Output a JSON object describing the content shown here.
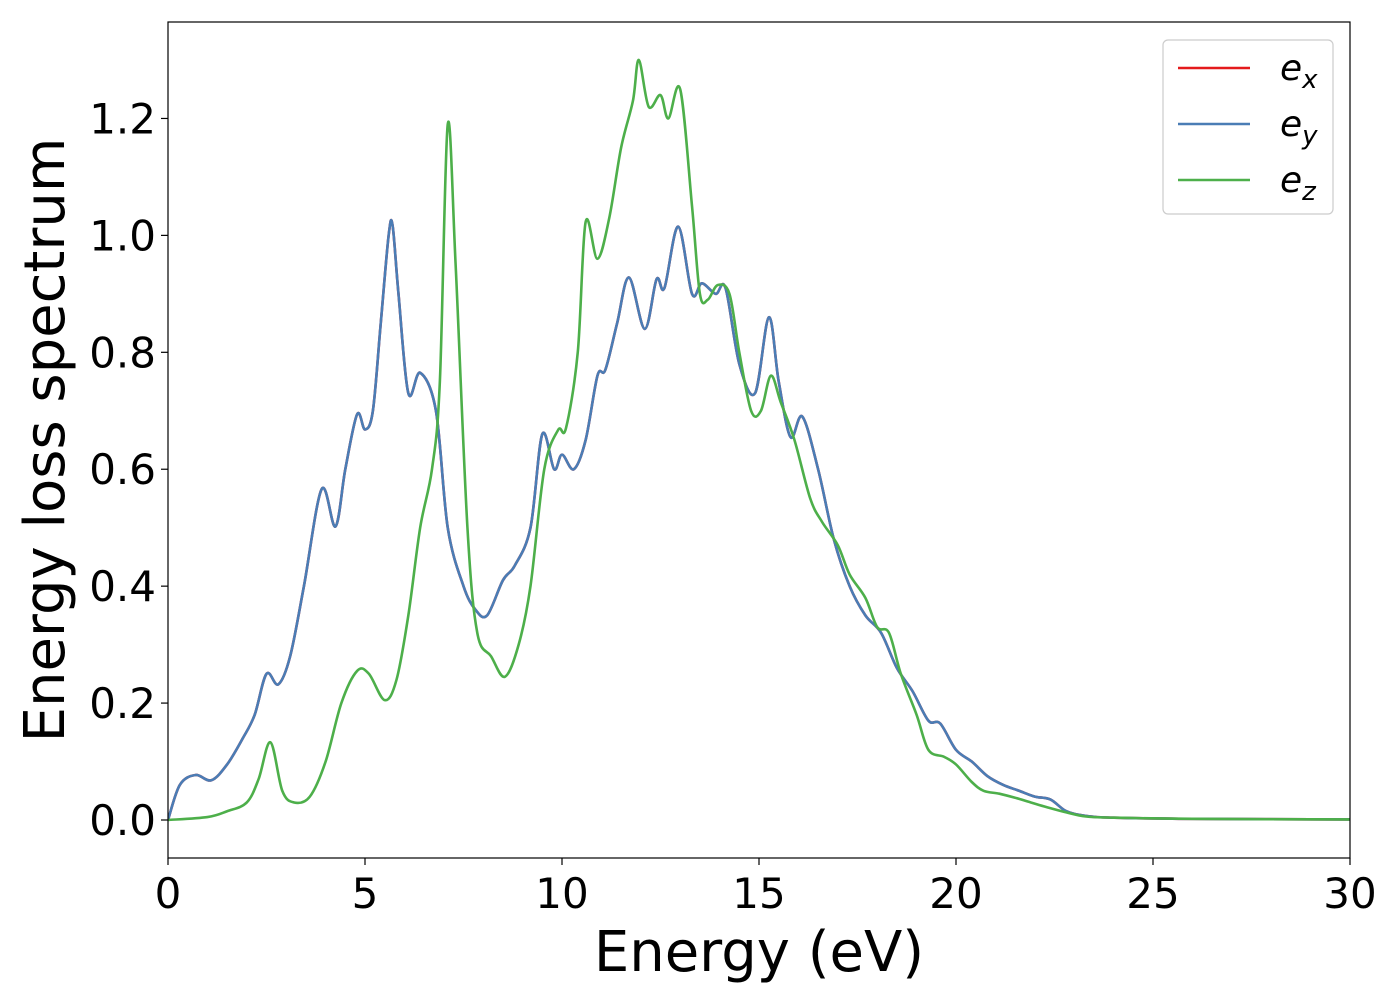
{
  "chart_data": {
    "type": "line",
    "title": "",
    "xlabel": "Energy (eV)",
    "ylabel": "Energy loss spectrum",
    "xlim": [
      0,
      30
    ],
    "ylim": [
      -0.065,
      1.365
    ],
    "xticks": [
      0,
      5,
      10,
      15,
      20,
      25,
      30
    ],
    "xtick_labels": [
      "0",
      "5",
      "10",
      "15",
      "20",
      "25",
      "30"
    ],
    "yticks": [
      0.0,
      0.2,
      0.4,
      0.6,
      0.8,
      1.0,
      1.2
    ],
    "ytick_labels": [
      "0.0",
      "0.2",
      "0.4",
      "0.6",
      "0.8",
      "1.0",
      "1.2"
    ],
    "grid": false,
    "legend_position": "top-right",
    "series": [
      {
        "name": "e_x",
        "legend_base": "e",
        "legend_sub": "x",
        "color": "#e41a1c",
        "points": [
          [
            0,
            0
          ],
          [
            0.3,
            0.06
          ],
          [
            0.7,
            0.077
          ],
          [
            1.1,
            0.068
          ],
          [
            1.5,
            0.095
          ],
          [
            1.9,
            0.14
          ],
          [
            2.2,
            0.18
          ],
          [
            2.5,
            0.25
          ],
          [
            2.8,
            0.232
          ],
          [
            3.1,
            0.28
          ],
          [
            3.45,
            0.4
          ],
          [
            3.9,
            0.566
          ],
          [
            4.25,
            0.502
          ],
          [
            4.5,
            0.6
          ],
          [
            4.8,
            0.694
          ],
          [
            5.0,
            0.668
          ],
          [
            5.2,
            0.7
          ],
          [
            5.4,
            0.85
          ],
          [
            5.6,
            1.0
          ],
          [
            5.7,
            1.017
          ],
          [
            5.85,
            0.9
          ],
          [
            6.1,
            0.73
          ],
          [
            6.4,
            0.765
          ],
          [
            6.8,
            0.7
          ],
          [
            7.1,
            0.5
          ],
          [
            7.5,
            0.4
          ],
          [
            7.8,
            0.36
          ],
          [
            8.1,
            0.35
          ],
          [
            8.5,
            0.41
          ],
          [
            8.8,
            0.435
          ],
          [
            9.2,
            0.5
          ],
          [
            9.5,
            0.66
          ],
          [
            9.8,
            0.6
          ],
          [
            10.0,
            0.625
          ],
          [
            10.3,
            0.6
          ],
          [
            10.6,
            0.65
          ],
          [
            10.9,
            0.76
          ],
          [
            11.1,
            0.77
          ],
          [
            11.4,
            0.85
          ],
          [
            11.7,
            0.928
          ],
          [
            12.1,
            0.84
          ],
          [
            12.4,
            0.925
          ],
          [
            12.6,
            0.91
          ],
          [
            12.95,
            1.015
          ],
          [
            13.3,
            0.9
          ],
          [
            13.55,
            0.918
          ],
          [
            13.9,
            0.9
          ],
          [
            14.15,
            0.91
          ],
          [
            14.5,
            0.78
          ],
          [
            14.9,
            0.73
          ],
          [
            15.25,
            0.86
          ],
          [
            15.5,
            0.75
          ],
          [
            15.8,
            0.655
          ],
          [
            16.1,
            0.69
          ],
          [
            16.5,
            0.6
          ],
          [
            16.9,
            0.48
          ],
          [
            17.3,
            0.4
          ],
          [
            17.7,
            0.35
          ],
          [
            18.1,
            0.32
          ],
          [
            18.5,
            0.26
          ],
          [
            18.9,
            0.22
          ],
          [
            19.3,
            0.17
          ],
          [
            19.6,
            0.165
          ],
          [
            20.0,
            0.12
          ],
          [
            20.4,
            0.1
          ],
          [
            20.8,
            0.075
          ],
          [
            21.2,
            0.06
          ],
          [
            21.6,
            0.05
          ],
          [
            22.0,
            0.04
          ],
          [
            22.4,
            0.035
          ],
          [
            22.8,
            0.015
          ],
          [
            23.3,
            0.007
          ],
          [
            24.0,
            0.004
          ],
          [
            26.0,
            0.002
          ],
          [
            30.0,
            0.001
          ]
        ]
      },
      {
        "name": "e_y",
        "legend_base": "e",
        "legend_sub": "y",
        "color": "#4a7db5",
        "points": [
          [
            0,
            0
          ],
          [
            0.3,
            0.06
          ],
          [
            0.7,
            0.077
          ],
          [
            1.1,
            0.068
          ],
          [
            1.5,
            0.095
          ],
          [
            1.9,
            0.14
          ],
          [
            2.2,
            0.18
          ],
          [
            2.5,
            0.25
          ],
          [
            2.8,
            0.232
          ],
          [
            3.1,
            0.28
          ],
          [
            3.45,
            0.4
          ],
          [
            3.9,
            0.566
          ],
          [
            4.25,
            0.502
          ],
          [
            4.5,
            0.6
          ],
          [
            4.8,
            0.694
          ],
          [
            5.0,
            0.668
          ],
          [
            5.2,
            0.7
          ],
          [
            5.4,
            0.85
          ],
          [
            5.6,
            1.0
          ],
          [
            5.7,
            1.017
          ],
          [
            5.85,
            0.9
          ],
          [
            6.1,
            0.73
          ],
          [
            6.4,
            0.765
          ],
          [
            6.8,
            0.7
          ],
          [
            7.1,
            0.5
          ],
          [
            7.5,
            0.4
          ],
          [
            7.8,
            0.36
          ],
          [
            8.1,
            0.35
          ],
          [
            8.5,
            0.41
          ],
          [
            8.8,
            0.435
          ],
          [
            9.2,
            0.5
          ],
          [
            9.5,
            0.66
          ],
          [
            9.8,
            0.6
          ],
          [
            10.0,
            0.625
          ],
          [
            10.3,
            0.6
          ],
          [
            10.6,
            0.65
          ],
          [
            10.9,
            0.76
          ],
          [
            11.1,
            0.77
          ],
          [
            11.4,
            0.85
          ],
          [
            11.7,
            0.928
          ],
          [
            12.1,
            0.84
          ],
          [
            12.4,
            0.925
          ],
          [
            12.6,
            0.91
          ],
          [
            12.95,
            1.015
          ],
          [
            13.3,
            0.9
          ],
          [
            13.55,
            0.918
          ],
          [
            13.9,
            0.9
          ],
          [
            14.15,
            0.91
          ],
          [
            14.5,
            0.78
          ],
          [
            14.9,
            0.73
          ],
          [
            15.25,
            0.86
          ],
          [
            15.5,
            0.75
          ],
          [
            15.8,
            0.655
          ],
          [
            16.1,
            0.69
          ],
          [
            16.5,
            0.6
          ],
          [
            16.9,
            0.48
          ],
          [
            17.3,
            0.4
          ],
          [
            17.7,
            0.35
          ],
          [
            18.1,
            0.32
          ],
          [
            18.5,
            0.26
          ],
          [
            18.9,
            0.22
          ],
          [
            19.3,
            0.17
          ],
          [
            19.6,
            0.165
          ],
          [
            20.0,
            0.12
          ],
          [
            20.4,
            0.1
          ],
          [
            20.8,
            0.075
          ],
          [
            21.2,
            0.06
          ],
          [
            21.6,
            0.05
          ],
          [
            22.0,
            0.04
          ],
          [
            22.4,
            0.035
          ],
          [
            22.8,
            0.015
          ],
          [
            23.3,
            0.007
          ],
          [
            24.0,
            0.004
          ],
          [
            26.0,
            0.002
          ],
          [
            30.0,
            0.001
          ]
        ]
      },
      {
        "name": "e_z",
        "legend_base": "e",
        "legend_sub": "z",
        "color": "#4daf4a",
        "points": [
          [
            0,
            0
          ],
          [
            1.0,
            0.005
          ],
          [
            1.5,
            0.015
          ],
          [
            2.0,
            0.03
          ],
          [
            2.3,
            0.07
          ],
          [
            2.6,
            0.133
          ],
          [
            2.9,
            0.05
          ],
          [
            3.2,
            0.03
          ],
          [
            3.6,
            0.04
          ],
          [
            4.0,
            0.1
          ],
          [
            4.4,
            0.2
          ],
          [
            4.8,
            0.255
          ],
          [
            5.1,
            0.25
          ],
          [
            5.5,
            0.205
          ],
          [
            5.8,
            0.24
          ],
          [
            6.1,
            0.35
          ],
          [
            6.4,
            0.5
          ],
          [
            6.7,
            0.6
          ],
          [
            6.9,
            0.75
          ],
          [
            7.1,
            1.19
          ],
          [
            7.3,
            0.95
          ],
          [
            7.6,
            0.5
          ],
          [
            7.85,
            0.32
          ],
          [
            8.2,
            0.28
          ],
          [
            8.55,
            0.245
          ],
          [
            8.9,
            0.3
          ],
          [
            9.2,
            0.4
          ],
          [
            9.55,
            0.6
          ],
          [
            9.9,
            0.667
          ],
          [
            10.1,
            0.67
          ],
          [
            10.4,
            0.8
          ],
          [
            10.6,
            1.023
          ],
          [
            10.9,
            0.96
          ],
          [
            11.2,
            1.03
          ],
          [
            11.5,
            1.15
          ],
          [
            11.8,
            1.23
          ],
          [
            11.95,
            1.3
          ],
          [
            12.2,
            1.22
          ],
          [
            12.5,
            1.24
          ],
          [
            12.7,
            1.2
          ],
          [
            13.0,
            1.25
          ],
          [
            13.3,
            1.05
          ],
          [
            13.5,
            0.9
          ],
          [
            13.7,
            0.89
          ],
          [
            13.95,
            0.915
          ],
          [
            14.25,
            0.9
          ],
          [
            14.5,
            0.8
          ],
          [
            14.8,
            0.7
          ],
          [
            15.05,
            0.7
          ],
          [
            15.3,
            0.76
          ],
          [
            15.55,
            0.715
          ],
          [
            15.9,
            0.65
          ],
          [
            16.3,
            0.55
          ],
          [
            16.6,
            0.51
          ],
          [
            17.0,
            0.47
          ],
          [
            17.3,
            0.42
          ],
          [
            17.7,
            0.38
          ],
          [
            18.0,
            0.33
          ],
          [
            18.3,
            0.32
          ],
          [
            18.6,
            0.25
          ],
          [
            19.0,
            0.18
          ],
          [
            19.3,
            0.12
          ],
          [
            19.7,
            0.108
          ],
          [
            20.0,
            0.095
          ],
          [
            20.4,
            0.065
          ],
          [
            20.7,
            0.05
          ],
          [
            21.1,
            0.045
          ],
          [
            21.5,
            0.038
          ],
          [
            21.9,
            0.03
          ],
          [
            22.3,
            0.022
          ],
          [
            22.8,
            0.013
          ],
          [
            23.3,
            0.006
          ],
          [
            24.0,
            0.004
          ],
          [
            26.0,
            0.002
          ],
          [
            30.0,
            0.001
          ]
        ]
      }
    ]
  }
}
